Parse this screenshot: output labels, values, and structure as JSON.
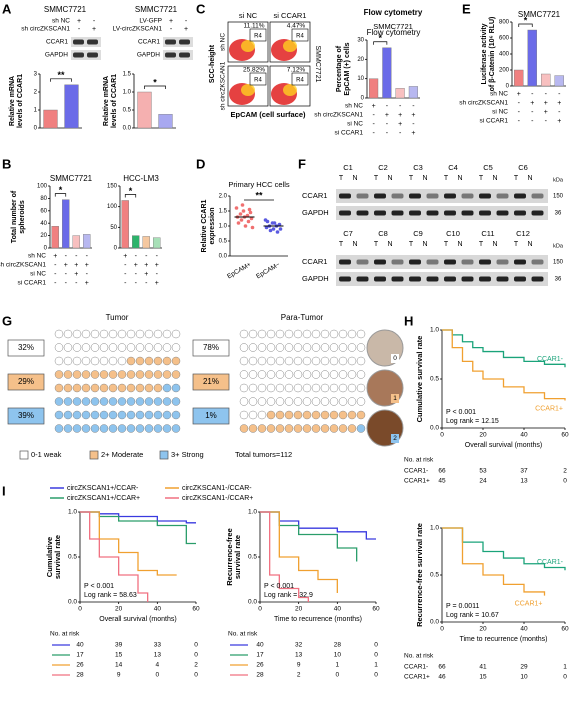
{
  "A": {
    "label": "A",
    "blots": [
      {
        "title": "SMMC7721",
        "conditions": [
          {
            "name": "sh NC",
            "signs": [
              "+",
              "-"
            ]
          },
          {
            "name": "sh circZKSCAN1",
            "signs": [
              "-",
              "+"
            ]
          }
        ],
        "bands": [
          "CCAR1",
          "GAPDH"
        ]
      },
      {
        "title": "SMMC7721",
        "conditions": [
          {
            "name": "LV-GFP",
            "signs": [
              "+",
              "-"
            ]
          },
          {
            "name": "LV-circZKSCAN1",
            "signs": [
              "-",
              "+"
            ]
          }
        ],
        "bands": [
          "CCAR1",
          "GAPDH"
        ]
      }
    ],
    "charts": [
      {
        "ylabel": [
          "Relative mRNA",
          "levels of CCAR1"
        ],
        "ylim": [
          0,
          3
        ],
        "yticks": [
          0,
          1,
          2,
          3
        ],
        "values": [
          1.0,
          2.4
        ],
        "colors": [
          "#f08080",
          "#6b6be8"
        ],
        "significance": "**"
      },
      {
        "ylabel": [
          "Relative mRNA",
          "levels of CCAR1"
        ],
        "ylim": [
          0,
          1.5
        ],
        "yticks": [
          {
            "value": 0,
            "label": "0.0"
          },
          {
            "value": 0.5,
            "label": "0.5"
          },
          {
            "value": 1,
            "label": "1.0"
          },
          {
            "value": 1.5,
            "label": "1.5"
          }
        ],
        "values": [
          1.0,
          0.38
        ],
        "colors": [
          "#f5b0b0",
          "#a8a8f0"
        ],
        "significance": "*"
      }
    ]
  },
  "C": {
    "label": "C",
    "flow": {
      "columns": [
        "si NC",
        "si CCAR1"
      ],
      "rows": [
        "sh NC",
        "sh circZKSCAN1"
      ],
      "percentages": [
        "11.11%",
        "4.47%",
        "25.82%",
        "7.12%"
      ],
      "gate": "R4",
      "ylabel": "SCC-height",
      "xlabel": "EpCAM (cell surface)",
      "side": "SMMC7721"
    },
    "chart": {
      "title": "Flow cytometry",
      "subtitle": "SMMC7721",
      "ylabel": [
        "Percentage of",
        "EpCAM (+) cells"
      ],
      "ylim": [
        0,
        30
      ],
      "yticks": [
        0,
        10,
        20,
        30
      ],
      "values": [
        10,
        26,
        5,
        6
      ],
      "colors": [
        "#f08080",
        "#6b6be8",
        "#f8c0c0",
        "#b8b8f0"
      ],
      "significance": "*",
      "conditions": [
        {
          "name": "sh NC",
          "signs": [
            "+",
            "-",
            "-",
            "-"
          ]
        },
        {
          "name": "sh circZKSCAN1",
          "signs": [
            "-",
            "+",
            "+",
            "+"
          ]
        },
        {
          "name": "si NC",
          "signs": [
            "-",
            "-",
            "+",
            "-"
          ]
        },
        {
          "name": "si CCAR1",
          "signs": [
            "-",
            "-",
            "-",
            "+"
          ]
        }
      ]
    }
  },
  "E": {
    "label": "E",
    "chart": {
      "title": "SMMC7721",
      "ylabel": [
        "Luciferase activity",
        "of β-Catenin (10⁶ RLU)"
      ],
      "ylim": [
        0,
        800
      ],
      "yticks": [
        0,
        200,
        400,
        600,
        800
      ],
      "values": [
        200,
        700,
        150,
        130
      ],
      "colors": [
        "#f08080",
        "#6b6be8",
        "#f8c0c0",
        "#b8b8f0"
      ],
      "significance": "*",
      "conditions": [
        {
          "name": "sh NC",
          "signs": [
            "+",
            "-",
            "-",
            "-"
          ]
        },
        {
          "name": "sh circZKSCAN1",
          "signs": [
            "-",
            "+",
            "+",
            "+"
          ]
        },
        {
          "name": "si NC",
          "signs": [
            "-",
            "-",
            "+",
            "-"
          ]
        },
        {
          "name": "si CCAR1",
          "signs": [
            "-",
            "-",
            "-",
            "+"
          ]
        }
      ]
    }
  },
  "B": {
    "label": "B",
    "ylabel": [
      "Total number of",
      "spheroids"
    ],
    "charts": [
      {
        "title": "SMMC7721",
        "ylim": [
          0,
          100
        ],
        "yticks": [
          0,
          20,
          40,
          60,
          80,
          100
        ],
        "values": [
          35,
          78,
          20,
          22
        ],
        "colors": [
          "#f08080",
          "#6b6be8",
          "#f8c0c0",
          "#b8b8f0"
        ],
        "significance": "*"
      },
      {
        "title": "HCC-LM3",
        "ylim": [
          0,
          150
        ],
        "yticks": [
          0,
          50,
          100,
          150
        ],
        "values": [
          115,
          30,
          28,
          25
        ],
        "colors": [
          "#f08080",
          "#2db36b",
          "#f5c8a0",
          "#a8e0b8"
        ],
        "significance": "*"
      }
    ],
    "conditions": [
      {
        "name": "sh NC",
        "signs": [
          "+",
          "-",
          "-",
          "-"
        ]
      },
      {
        "name": "sh circZKSCAN1",
        "signs": [
          "-",
          "+",
          "+",
          "+"
        ]
      },
      {
        "name": "si NC",
        "signs": [
          "-",
          "-",
          "+",
          "-"
        ]
      },
      {
        "name": "si CCAR1",
        "signs": [
          "-",
          "-",
          "-",
          "+"
        ]
      }
    ]
  },
  "D": {
    "label": "D",
    "title": "Primary HCC cells",
    "ylabel": [
      "Relative CCAR1",
      "expression"
    ],
    "ylim": [
      0,
      2
    ],
    "yticks": [
      {
        "value": 0,
        "label": "0.0"
      },
      {
        "value": 0.5,
        "label": "0.5"
      },
      {
        "value": 1,
        "label": "1.0"
      },
      {
        "value": 1.5,
        "label": "1.5"
      },
      {
        "value": 2,
        "label": "2.0"
      }
    ],
    "groups": [
      {
        "name": "EpCAM+",
        "color": "#f07070",
        "values": [
          1.6,
          1.5,
          1.45,
          1.4,
          1.35,
          1.3,
          1.3,
          1.25,
          1.2,
          1.15,
          1.1,
          1.0,
          0.95,
          1.7,
          1.55
        ],
        "mean": 1.3
      },
      {
        "name": "EpCAM−",
        "color": "#5a5ae0",
        "values": [
          1.2,
          1.1,
          1.05,
          1.0,
          1.0,
          0.95,
          0.9,
          0.9,
          0.85,
          0.8,
          1.15,
          1.1
        ],
        "mean": 1.0
      }
    ],
    "significance": "**"
  },
  "F": {
    "label": "F",
    "rows": [
      {
        "cases": [
          "C1",
          "C2",
          "C3",
          "C4",
          "C5",
          "C6"
        ]
      },
      {
        "cases": [
          "C7",
          "C8",
          "C9",
          "C10",
          "C11",
          "C12"
        ]
      }
    ],
    "lanes": [
      "T",
      "N"
    ],
    "bands": [
      "CCAR1",
      "GAPDH"
    ],
    "unit": "kDa",
    "sizes": [
      "150",
      "36"
    ]
  },
  "G": {
    "label": "G",
    "total": "Total tumors=112",
    "levels": [
      "0-1 weak",
      "2+ Moderate",
      "3+ Strong"
    ],
    "colors": [
      "#ffffff",
      "#f5c08a",
      "#8ec4ee"
    ],
    "groups": [
      {
        "name": "Tumor",
        "values": [
          32,
          29,
          39
        ],
        "value_labels": [
          "32%",
          "29%",
          "39%"
        ]
      },
      {
        "name": "Para-Tumor",
        "values": [
          78,
          21,
          1
        ],
        "value_labels": [
          "78%",
          "21%",
          "1%"
        ]
      }
    ],
    "ihc_scores": [
      "0",
      "1",
      "2"
    ]
  },
  "H": {
    "label": "H",
    "ylabel": "Cumulative survival rate",
    "xlabel": "Overall survival (months)",
    "xlim": [
      0,
      60
    ],
    "xticks": [
      0,
      20,
      40,
      60
    ],
    "ylim": [
      0,
      1
    ],
    "yticks": [
      {
        "value": 0,
        "label": "0.0"
      },
      {
        "value": 0.5,
        "label": "0.5"
      },
      {
        "value": 1,
        "label": "1.0"
      }
    ],
    "series": [
      {
        "name": "CCAR1-",
        "color": "#1aa37a",
        "x": [
          0,
          5,
          10,
          15,
          20,
          30,
          40,
          50,
          60
        ],
        "y": [
          1,
          0.95,
          0.88,
          0.82,
          0.78,
          0.72,
          0.68,
          0.65,
          0.62
        ]
      },
      {
        "name": "CCAR1+",
        "color": "#f0a030",
        "x": [
          0,
          5,
          10,
          15,
          20,
          30,
          40,
          50,
          60
        ],
        "y": [
          1,
          0.82,
          0.68,
          0.58,
          0.5,
          0.42,
          0.36,
          0.3,
          0.28
        ]
      }
    ],
    "p": "P < 0.001",
    "logrank": "Log rank = 12.15",
    "risk": {
      "title": "No. at risk",
      "rows": [
        {
          "name": "CCAR1-",
          "values": [
            66,
            53,
            37,
            2
          ]
        },
        {
          "name": "CCAR1+",
          "values": [
            45,
            24,
            13,
            0
          ]
        }
      ]
    }
  },
  "I": {
    "label": "I",
    "legend": [
      {
        "name": "circZKSCAN1+/CCAR-",
        "color": "#3a3adf"
      },
      {
        "name": "circZKSCAN1+/CCAR+",
        "color": "#2a9d6a"
      },
      {
        "name": "circZKSCAN1-/CCAR-",
        "color": "#f0a030"
      },
      {
        "name": "circZKSCAN1-/CCAR+",
        "color": "#f07080"
      }
    ],
    "os": {
      "ylabel": [
        "Cumulative",
        "survival rate"
      ],
      "xlabel": "Overall survival (months)",
      "xlim": [
        0,
        60
      ],
      "xticks": [
        0,
        20,
        40,
        60
      ],
      "ylim": [
        0,
        1
      ],
      "yticks": [
        {
          "value": 0,
          "label": "0.0"
        },
        {
          "value": 0.5,
          "label": "0.5"
        },
        {
          "value": 1,
          "label": "1.0"
        }
      ],
      "series": [
        {
          "x": [
            0,
            10,
            20,
            40,
            55,
            60
          ],
          "y": [
            1,
            0.98,
            0.95,
            0.9,
            0.88,
            0.88
          ]
        },
        {
          "x": [
            0,
            10,
            20,
            40,
            55,
            60
          ],
          "y": [
            1,
            0.95,
            0.9,
            0.85,
            0.65,
            0.65
          ]
        },
        {
          "x": [
            0,
            10,
            20,
            30,
            40,
            50
          ],
          "y": [
            1,
            0.7,
            0.55,
            0.35,
            0.3,
            0.3
          ]
        },
        {
          "x": [
            0,
            5,
            10,
            20,
            30,
            35
          ],
          "y": [
            1,
            0.7,
            0.5,
            0.3,
            0.1,
            0
          ]
        }
      ],
      "p": "P < 0.001",
      "logrank": "Log rank = 58.63",
      "risk": {
        "title": "No. at risk",
        "rows": [
          {
            "values": [
              40,
              39,
              33,
              0
            ]
          },
          {
            "values": [
              17,
              15,
              13,
              0
            ]
          },
          {
            "values": [
              26,
              14,
              4,
              2
            ]
          },
          {
            "values": [
              28,
              9,
              0,
              0
            ]
          }
        ]
      }
    },
    "rfs": {
      "ylabel": [
        "Recurrence-free",
        "survival rate"
      ],
      "xlabel": "Time to recurrence (months)",
      "xlim": [
        0,
        60
      ],
      "xticks": [
        0,
        20,
        40,
        60
      ],
      "ylim": [
        0,
        1
      ],
      "yticks": [
        {
          "value": 0,
          "label": "0.0"
        },
        {
          "value": 0.5,
          "label": "0.5"
        },
        {
          "value": 1,
          "label": "1.0"
        }
      ],
      "series": [
        {
          "x": [
            0,
            10,
            20,
            40,
            55,
            60
          ],
          "y": [
            1,
            0.9,
            0.82,
            0.78,
            0.7,
            0.7
          ]
        },
        {
          "x": [
            0,
            10,
            20,
            40,
            50
          ],
          "y": [
            1,
            0.85,
            0.75,
            0.6,
            0.45
          ]
        },
        {
          "x": [
            0,
            10,
            20,
            30,
            40
          ],
          "y": [
            1,
            0.5,
            0.35,
            0.25,
            0.1
          ]
        },
        {
          "x": [
            0,
            5,
            10,
            20,
            25
          ],
          "y": [
            1,
            0.3,
            0.15,
            0.05,
            0
          ]
        }
      ],
      "p": "P < 0.001",
      "logrank": "Log rank = 32.9",
      "risk": {
        "title": "No. at risk",
        "rows": [
          {
            "values": [
              40,
              32,
              28,
              0
            ]
          },
          {
            "values": [
              17,
              13,
              10,
              0
            ]
          },
          {
            "values": [
              26,
              9,
              1,
              1
            ]
          },
          {
            "values": [
              28,
              2,
              0,
              0
            ]
          }
        ]
      }
    },
    "ccar1": {
      "ylabel": "Recurrence-free survival rate",
      "xlabel": "Time to recurrence (months)",
      "xlim": [
        0,
        60
      ],
      "xticks": [
        0,
        20,
        40,
        60
      ],
      "ylim": [
        0,
        1
      ],
      "yticks": [
        {
          "value": 0,
          "label": "0.0"
        },
        {
          "value": 0.5,
          "label": "0.5"
        },
        {
          "value": 1,
          "label": "1.0"
        }
      ],
      "series": [
        {
          "name": "CCAR1-",
          "color": "#1aa37a",
          "x": [
            0,
            10,
            20,
            30,
            40,
            50,
            60
          ],
          "y": [
            1,
            0.85,
            0.75,
            0.68,
            0.62,
            0.58,
            0.55
          ]
        },
        {
          "name": "CCAR1+",
          "color": "#f0a030",
          "x": [
            0,
            10,
            20,
            30,
            40,
            50
          ],
          "y": [
            1,
            0.62,
            0.5,
            0.4,
            0.32,
            0.28
          ]
        }
      ],
      "p": "P = 0.0011",
      "logrank": "Log rank = 10.67",
      "risk": {
        "title": "No. at risk",
        "rows": [
          {
            "name": "CCAR1-",
            "values": [
              66,
              41,
              29,
              1
            ]
          },
          {
            "name": "CCAR1+",
            "values": [
              46,
              15,
              10,
              0
            ]
          }
        ]
      }
    }
  }
}
